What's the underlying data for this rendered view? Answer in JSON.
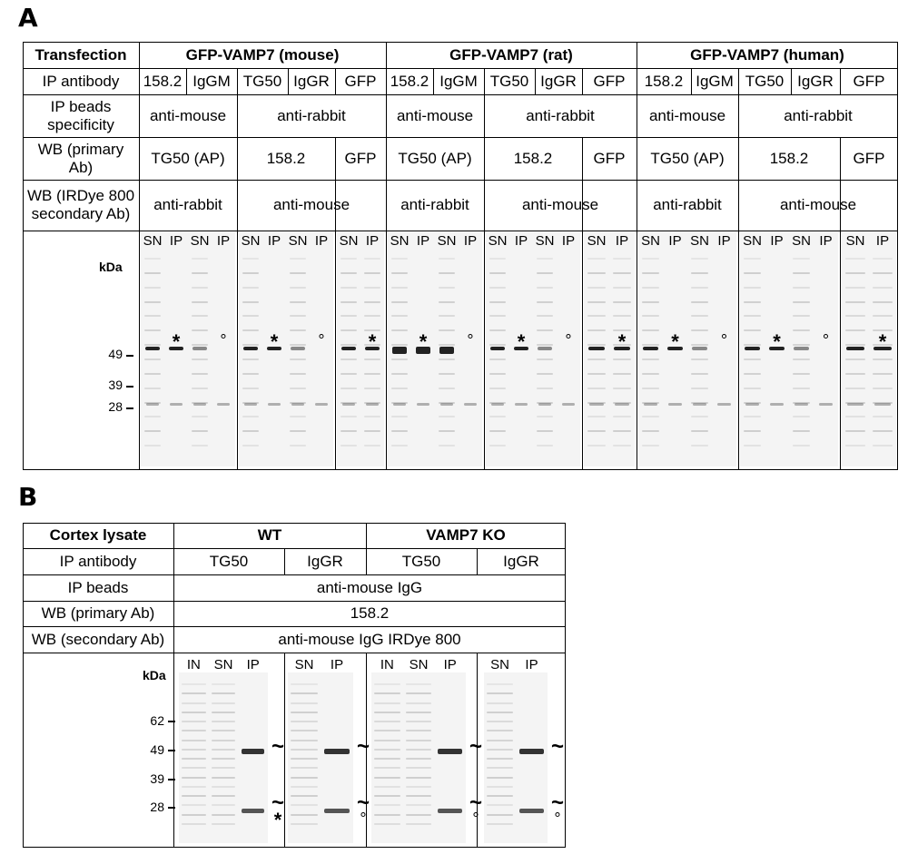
{
  "panel_a": {
    "letter": "A",
    "row_labels": {
      "transfection": "Transfection",
      "ip_antibody": "IP antibody",
      "ip_beads": "IP beads specificity",
      "wb_primary": "WB (primary Ab)",
      "wb_secondary": "WB (IRDye 800 secondary Ab)"
    },
    "groups": [
      {
        "title": "GFP-VAMP7 (mouse)"
      },
      {
        "title": "GFP-VAMP7 (rat)"
      },
      {
        "title": "GFP-VAMP7 (human)"
      }
    ],
    "ip_antibodies": [
      "158.2",
      "IgGM",
      "TG50",
      "IgGR",
      "GFP"
    ],
    "beads": [
      "anti-mouse",
      "anti-rabbit"
    ],
    "primary": [
      "TG50 (AP)",
      "158.2",
      "GFP"
    ],
    "secondary": [
      "anti-rabbit",
      "anti-mouse"
    ],
    "lane_labels": [
      "SN",
      "IP"
    ],
    "kda_label": "kDa",
    "markers": [
      "49",
      "39",
      "28"
    ],
    "star": "*",
    "ring": "°"
  },
  "panel_b": {
    "letter": "B",
    "row_labels": {
      "lysate": "Cortex lysate",
      "ip_antibody": "IP antibody",
      "ip_beads": "IP beads",
      "wb_primary": "WB (primary Ab)",
      "wb_secondary": "WB (secondary Ab)"
    },
    "groups": [
      "WT",
      "VAMP7 KO"
    ],
    "ip_antibodies": [
      "TG50",
      "IgGR"
    ],
    "beads": "anti-mouse IgG",
    "primary": "158.2",
    "secondary": "anti-mouse IgG IRDye 800",
    "lane_labels_a": [
      "IN",
      "SN",
      "IP"
    ],
    "lane_labels_b": [
      "SN",
      "IP"
    ],
    "kda_label": "kDa",
    "markers": [
      "62",
      "49",
      "39",
      "28"
    ],
    "tilde": "~",
    "star": "*",
    "ring": "°"
  }
}
